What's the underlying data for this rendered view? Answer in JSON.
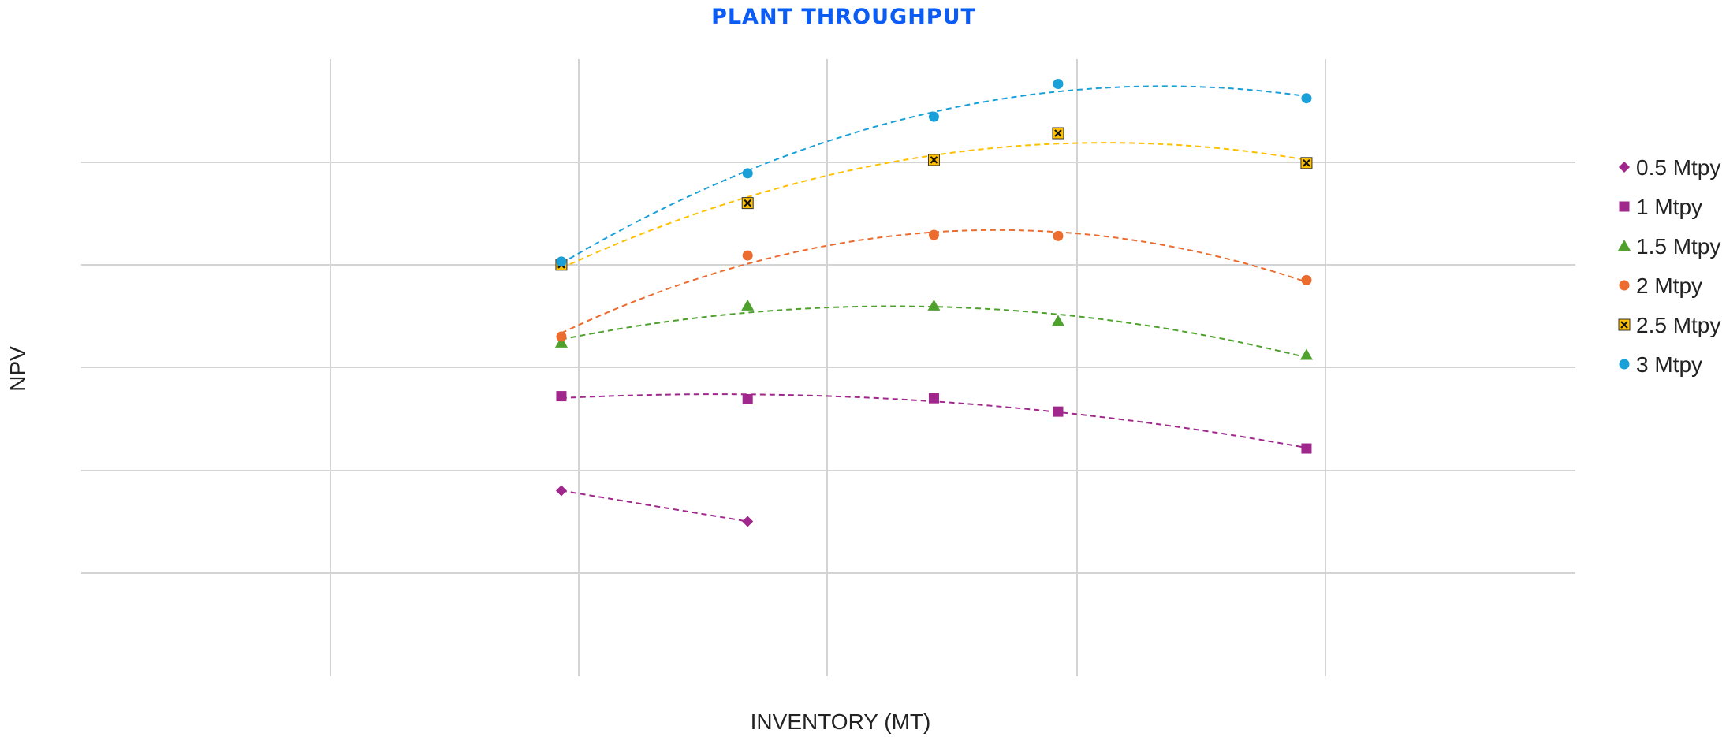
{
  "chart_data": {
    "type": "scatter",
    "title": "PLANT THROUGHPUT",
    "xlabel": "INVENTORY (MT)",
    "ylabel": "NPV",
    "xlim": [
      0,
      6
    ],
    "ylim": [
      0,
      6
    ],
    "grid": true,
    "tick_labels_shown": false,
    "legend_position": "right",
    "trendlines": "dashed polynomial",
    "series": [
      {
        "name": "0.5 Mtpy",
        "marker": "diamond",
        "color": "#a0288c",
        "points": [
          [
            1.93,
            1.8
          ],
          [
            2.68,
            1.5
          ]
        ]
      },
      {
        "name": "1 Mtpy",
        "marker": "square",
        "color": "#a0288c",
        "points": [
          [
            1.93,
            2.72
          ],
          [
            2.68,
            2.69
          ],
          [
            3.43,
            2.7
          ],
          [
            3.93,
            2.57
          ],
          [
            4.93,
            2.21
          ]
        ]
      },
      {
        "name": "1.5 Mtpy",
        "marker": "triangle",
        "color": "#4ea12c",
        "points": [
          [
            1.93,
            3.24
          ],
          [
            2.68,
            3.6
          ],
          [
            3.43,
            3.6
          ],
          [
            3.93,
            3.45
          ],
          [
            4.93,
            3.12
          ]
        ]
      },
      {
        "name": "2 Mtpy",
        "marker": "circle",
        "color": "#ec6b2e",
        "points": [
          [
            1.93,
            3.3
          ],
          [
            2.68,
            4.09
          ],
          [
            3.43,
            4.29
          ],
          [
            3.93,
            4.28
          ],
          [
            4.93,
            3.85
          ]
        ]
      },
      {
        "name": "2.5 Mtpy",
        "marker": "x-square",
        "color": "#ffc000",
        "points": [
          [
            1.93,
            4.0
          ],
          [
            2.68,
            4.6
          ],
          [
            3.43,
            5.02
          ],
          [
            3.93,
            5.28
          ],
          [
            4.93,
            4.99
          ]
        ]
      },
      {
        "name": "3 Mtpy",
        "marker": "circle",
        "color": "#1aa0d8",
        "points": [
          [
            1.93,
            4.03
          ],
          [
            2.68,
            4.89
          ],
          [
            3.43,
            5.44
          ],
          [
            3.93,
            5.76
          ],
          [
            4.93,
            5.62
          ]
        ]
      }
    ]
  }
}
